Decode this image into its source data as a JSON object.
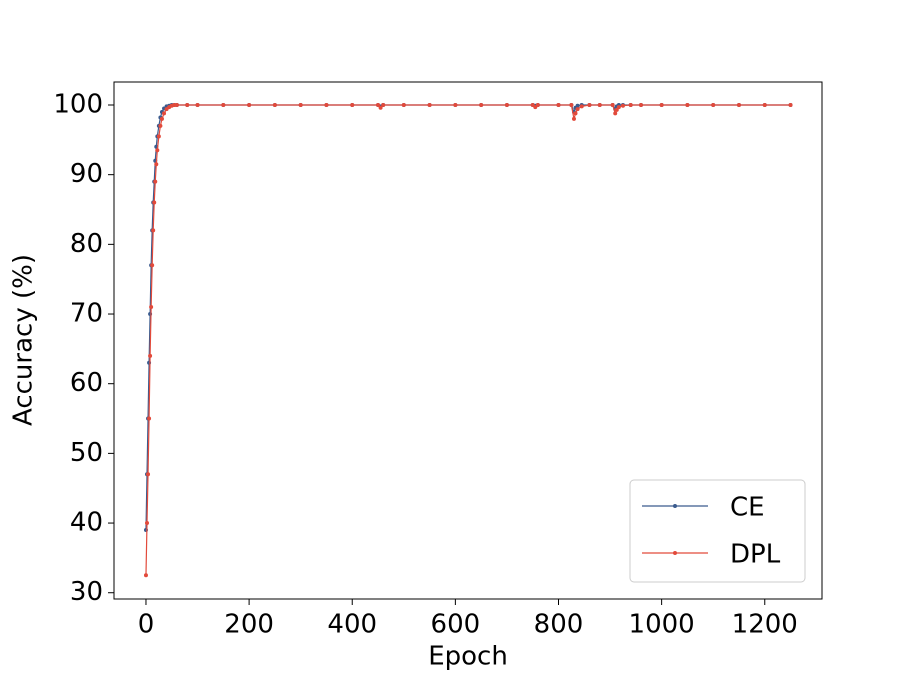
{
  "chart_data": {
    "type": "line",
    "xlabel": "Epoch",
    "ylabel": "Accuracy (%)",
    "x": [
      0,
      2,
      4,
      6,
      8,
      10,
      12,
      14,
      16,
      18,
      20,
      22,
      25,
      28,
      31,
      35,
      40,
      45,
      50,
      55,
      60,
      80,
      100,
      150,
      200,
      250,
      300,
      350,
      400,
      450,
      455,
      460,
      500,
      550,
      600,
      650,
      700,
      750,
      755,
      760,
      800,
      825,
      830,
      833,
      837,
      845,
      860,
      880,
      905,
      910,
      913,
      917,
      925,
      940,
      960,
      1000,
      1050,
      1100,
      1150,
      1200,
      1250
    ],
    "series": [
      {
        "name": "CE",
        "color": "#3b5b8e",
        "values": [
          39,
          47,
          55,
          63,
          70,
          77,
          82,
          86,
          89,
          92,
          94,
          95.5,
          97,
          98.2,
          99,
          99.5,
          99.8,
          99.9,
          100,
          100,
          100,
          100,
          100,
          100,
          100,
          100,
          100,
          100,
          100,
          100,
          99.8,
          100,
          100,
          100,
          100,
          100,
          100,
          100,
          99.9,
          100,
          100,
          100,
          99,
          99.6,
          99.9,
          100,
          100,
          100,
          100,
          99.4,
          99.8,
          100,
          100,
          100,
          100,
          100,
          100,
          100,
          100,
          100,
          100
        ]
      },
      {
        "name": "DPL",
        "color": "#e24a3b",
        "values": [
          32.5,
          40,
          47,
          55,
          64,
          71,
          77,
          82,
          86,
          89,
          91.5,
          93.5,
          95.5,
          97,
          98,
          98.8,
          99.4,
          99.7,
          99.9,
          100,
          100,
          100,
          100,
          100,
          100,
          100,
          100,
          100,
          100,
          100,
          99.6,
          100,
          100,
          100,
          100,
          100,
          100,
          100,
          99.7,
          100,
          100,
          100,
          98,
          98.8,
          99.4,
          99.8,
          100,
          100,
          100,
          98.8,
          99.3,
          99.7,
          99.9,
          100,
          100,
          100,
          100,
          100,
          100,
          100,
          100
        ]
      }
    ],
    "xlim": [
      -62,
      1311
    ],
    "xticks": [
      0,
      200,
      400,
      600,
      800,
      1000,
      1200
    ],
    "ylim": [
      29.1,
      103.3
    ],
    "yticks": [
      30,
      40,
      50,
      60,
      70,
      80,
      90,
      100
    ],
    "legend": "lower right"
  }
}
